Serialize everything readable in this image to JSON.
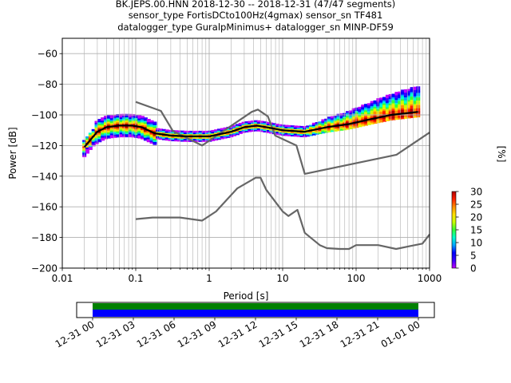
{
  "title_lines": [
    "BK.JEPS.00.HNN   2018-12-30 -- 2018-12-31  (47/47 segments)",
    "sensor_type FortisDCto100Hz(4gmax) sensor_sn TF481",
    "datalogger_type GuralpMinimus+ datalogger_sn MINP-DF59"
  ],
  "chart_data": [
    {
      "type": "heatmap",
      "xlabel": "Period [s]",
      "ylabel": "Power [dB]",
      "x_scale": "log",
      "xlim": [
        0.01,
        1000
      ],
      "ylim": [
        -200,
        -50
      ],
      "x_ticks": [
        0.01,
        0.1,
        1,
        10,
        100,
        1000
      ],
      "x_tick_labels": [
        "0.01",
        "0.1",
        "1",
        "10",
        "100",
        "1000"
      ],
      "y_ticks": [
        -200,
        -180,
        -160,
        -140,
        -120,
        -100,
        -80,
        -60
      ],
      "y_tick_labels": [
        "−200",
        "−180",
        "−160",
        "−140",
        "−120",
        "−100",
        "−80",
        "−60"
      ],
      "grid": true,
      "colorbar": {
        "label": "[%]",
        "range": [
          0,
          30
        ],
        "ticks": [
          0,
          5,
          10,
          15,
          20,
          25,
          30
        ],
        "tick_labels": [
          "0",
          "5",
          "10",
          "15",
          "20",
          "25",
          "30"
        ],
        "colormap": [
          "#ffffff",
          "#bf00ff",
          "#3a00ff",
          "#0000ff",
          "#00a6ff",
          "#00ffcc",
          "#35ff35",
          "#c8ff00",
          "#ffe000",
          "#ff8c00",
          "#ff1f00",
          "#b00000"
        ]
      },
      "series": [
        {
          "kind": "reference",
          "color": "#666666",
          "x": [
            0.1,
            0.22,
            0.32,
            0.8,
            3.8,
            4.6,
            6.3,
            7.9,
            15.4,
            20,
            354.8,
            1000
          ],
          "y": [
            -91.5,
            -97.4,
            -110.5,
            -120,
            -98,
            -96.5,
            -101,
            -113.5,
            -120,
            -138.5,
            -126,
            -111.5
          ]
        },
        {
          "kind": "reference",
          "color": "#666666",
          "x": [
            0.1,
            0.17,
            0.4,
            0.8,
            1.24,
            2.4,
            4.3,
            5,
            6,
            10,
            12,
            15.9,
            20,
            32,
            40,
            60,
            80,
            100,
            200,
            350,
            500,
            800,
            1000
          ],
          "y": [
            -168,
            -167,
            -167,
            -169,
            -163,
            -148,
            -141,
            -141,
            -149,
            -163,
            -166,
            -162,
            -177,
            -185,
            -187,
            -187.5,
            -187.5,
            -185,
            -185,
            -187.5,
            -186,
            -184,
            -178
          ]
        },
        {
          "kind": "mode",
          "color": "#000000",
          "x": [
            0.02,
            0.03,
            0.04,
            0.06,
            0.09,
            0.12,
            0.18,
            0.3,
            0.5,
            1,
            2,
            3,
            4.5,
            6,
            10,
            20,
            40,
            80,
            150,
            300,
            700
          ],
          "y": [
            -121,
            -111,
            -108,
            -107,
            -107,
            -108,
            -112,
            -113.5,
            -114,
            -114,
            -111,
            -108,
            -107,
            -108,
            -110,
            -111,
            -108,
            -106,
            -103,
            -100,
            -98
          ]
        }
      ]
    },
    {
      "type": "bar",
      "x_tick_labels": [
        "12-31 00",
        "12-31 03",
        "12-31 06",
        "12-31 09",
        "12-31 12",
        "12-31 15",
        "12-31 18",
        "12-31 21",
        "01-01 00"
      ],
      "tracks": [
        {
          "start": "12-31 00",
          "end": "01-01 00",
          "color": "#008000"
        },
        {
          "start": "12-31 00",
          "end": "01-01 00",
          "color": "#0000ff"
        }
      ]
    }
  ]
}
